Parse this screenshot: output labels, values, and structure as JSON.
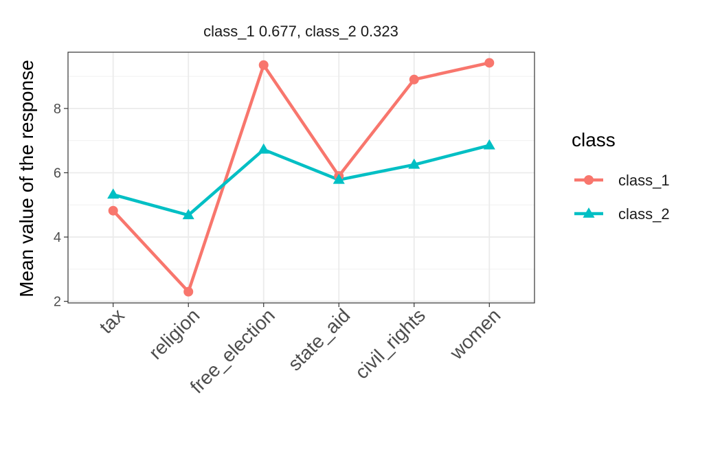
{
  "chart_data": {
    "type": "line",
    "title": "class_1 0.677, class_2 0.323",
    "ylabel": "Mean value of the response",
    "xlabel": "",
    "categories": [
      "tax",
      "religion",
      "free_election",
      "state_aid",
      "civil_rights",
      "women"
    ],
    "yticks": [
      2,
      4,
      6,
      8
    ],
    "ylim": [
      1.95,
      9.75
    ],
    "grid": true,
    "legend": {
      "title": "class",
      "position": "right"
    },
    "series": [
      {
        "name": "class_1",
        "color": "#F8766D",
        "marker": "circle",
        "values": [
          4.82,
          2.3,
          9.35,
          5.9,
          8.9,
          9.42
        ]
      },
      {
        "name": "class_2",
        "color": "#00BFC4",
        "marker": "triangle",
        "values": [
          5.32,
          4.68,
          6.72,
          5.78,
          6.25,
          6.85
        ]
      }
    ]
  }
}
